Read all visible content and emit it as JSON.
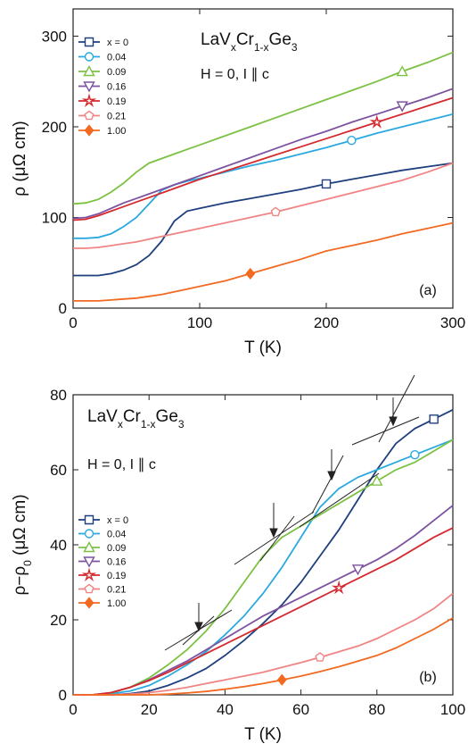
{
  "chart_data": [
    {
      "type": "line",
      "panel_label": "(a)",
      "formula": [
        "LaV",
        "x",
        "Cr",
        "1-x",
        "Ge",
        "3"
      ],
      "condition": "H = 0, I ∥ c",
      "x_label": "T (K)",
      "y_label": [
        "ρ (μΩ cm)"
      ],
      "xlim": [
        0,
        300
      ],
      "ylim": [
        0,
        330
      ],
      "xticks": [
        0,
        100,
        200,
        300
      ],
      "yticks": [
        0,
        100,
        200,
        300
      ],
      "legend": "upper left",
      "x": [
        0,
        10,
        20,
        30,
        40,
        50,
        60,
        70,
        80,
        90,
        100,
        120,
        140,
        160,
        180,
        200,
        220,
        240,
        260,
        280,
        300
      ],
      "series": [
        {
          "name": "x = 0",
          "color": "#1f3f7f",
          "marker": "square",
          "values": [
            36,
            36,
            36,
            38,
            42,
            48,
            58,
            74,
            96,
            107,
            110,
            116,
            121,
            126,
            131,
            137,
            142,
            147,
            152,
            156,
            160
          ]
        },
        {
          "name": "0.04",
          "color": "#2aa9e0",
          "marker": "circle",
          "values": [
            77,
            77,
            78,
            82,
            90,
            100,
            115,
            130,
            136,
            140,
            143,
            150,
            157,
            163,
            170,
            177,
            185,
            193,
            200,
            207,
            214
          ]
        },
        {
          "name": "0.09",
          "color": "#7cc142",
          "marker": "triangle-up",
          "values": [
            115,
            116,
            120,
            128,
            138,
            150,
            160,
            165,
            170,
            175,
            180,
            190,
            200,
            210,
            220,
            230,
            240,
            250,
            261,
            271,
            282
          ]
        },
        {
          "name": "0.16",
          "color": "#7d52a0",
          "marker": "triangle-down",
          "values": [
            99,
            100,
            104,
            110,
            116,
            121,
            126,
            131,
            136,
            141,
            146,
            156,
            166,
            176,
            186,
            195,
            205,
            214,
            223,
            232,
            242
          ]
        },
        {
          "name": "0.19",
          "color": "#d42a2f",
          "marker": "star",
          "values": [
            97,
            98,
            102,
            107,
            112,
            117,
            122,
            127,
            132,
            137,
            142,
            151,
            160,
            169,
            178,
            187,
            196,
            205,
            214,
            223,
            232
          ]
        },
        {
          "name": "0.21",
          "color": "#f08484",
          "marker": "pentagon",
          "values": [
            66,
            66,
            67,
            69,
            71,
            73,
            76,
            79,
            82,
            85,
            88,
            94,
            100,
            106,
            113,
            120,
            127,
            134,
            141,
            150,
            160
          ]
        },
        {
          "name": "1.00",
          "color": "#f26a21",
          "marker": "diamond",
          "values": [
            8,
            8,
            8,
            9,
            10,
            11,
            13,
            15,
            18,
            21,
            24,
            30,
            38,
            46,
            54,
            63,
            69,
            75,
            82,
            88,
            94
          ]
        }
      ]
    },
    {
      "type": "line",
      "panel_label": "(b)",
      "formula": [
        "LaV",
        "x",
        "Cr",
        "1-x",
        "Ge",
        "3"
      ],
      "condition": "H = 0, I ∥ c",
      "x_label": "T (K)",
      "y_label": [
        "ρ−ρ",
        "0",
        " (μΩ cm)"
      ],
      "xlim": [
        0,
        100
      ],
      "ylim": [
        0,
        80
      ],
      "xticks": [
        0,
        20,
        40,
        60,
        80,
        100
      ],
      "yticks": [
        0,
        20,
        40,
        60,
        80
      ],
      "legend": "center left",
      "x": [
        0,
        5,
        10,
        15,
        20,
        25,
        30,
        35,
        40,
        45,
        50,
        55,
        60,
        65,
        70,
        75,
        80,
        85,
        90,
        95,
        100
      ],
      "series": [
        {
          "name": "x = 0",
          "color": "#1f3f7f",
          "marker": "square",
          "values": [
            0,
            0,
            0,
            0.3,
            1,
            2.5,
            4.5,
            7,
            10.5,
            14.5,
            19,
            24,
            30,
            37,
            44,
            52,
            60,
            67,
            71,
            73.5,
            76
          ]
        },
        {
          "name": "0.04",
          "color": "#2aa9e0",
          "marker": "circle",
          "values": [
            0,
            0,
            0.3,
            1,
            2.5,
            5,
            8,
            11.5,
            16,
            21,
            27,
            34,
            42,
            50,
            55,
            58,
            60,
            62,
            64,
            66,
            68
          ]
        },
        {
          "name": "0.09",
          "color": "#7cc142",
          "marker": "triangle-up",
          "values": [
            0,
            0,
            0.5,
            2,
            4.5,
            8,
            12,
            17,
            23,
            30,
            37,
            42,
            45,
            48,
            51,
            54,
            57,
            60,
            62,
            65,
            68
          ]
        },
        {
          "name": "0.16",
          "color": "#7d52a0",
          "marker": "triangle-down",
          "values": [
            0,
            0,
            0.6,
            2,
            4,
            6.5,
            9,
            12,
            15,
            18,
            21,
            23.5,
            26,
            28.5,
            31,
            33.5,
            36,
            39,
            42.5,
            46.5,
            50.5
          ]
        },
        {
          "name": "0.19",
          "color": "#d42a2f",
          "marker": "star",
          "values": [
            0,
            0,
            0.6,
            2,
            3.8,
            6,
            8.5,
            11,
            13.5,
            16,
            18.5,
            21,
            23.5,
            26,
            28.5,
            31,
            33.5,
            36,
            39,
            42,
            44.5
          ]
        },
        {
          "name": "0.21",
          "color": "#f08484",
          "marker": "pentagon",
          "values": [
            0,
            0,
            0,
            0.2,
            0.6,
            1.2,
            2,
            3,
            4,
            5,
            6,
            7.3,
            8.6,
            10,
            11.5,
            13,
            15,
            17.5,
            20,
            23,
            27
          ]
        },
        {
          "name": "1.00",
          "color": "#f26a21",
          "marker": "diamond",
          "values": [
            0,
            0,
            0,
            0,
            0,
            0.2,
            0.5,
            0.9,
            1.5,
            2.2,
            3,
            4,
            5,
            6.2,
            7.5,
            9,
            10.5,
            12.5,
            15,
            17.5,
            20.5
          ]
        }
      ]
    }
  ]
}
